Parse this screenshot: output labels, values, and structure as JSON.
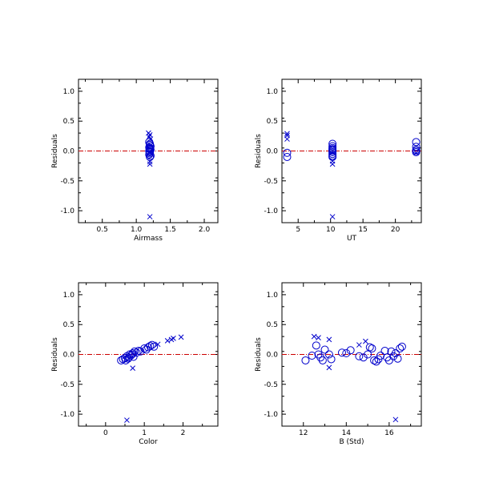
{
  "chart_data": [
    {
      "type": "scatter",
      "xlabel": "Airmass",
      "ylabel": "Residuals",
      "xlim": [
        0.15,
        2.2
      ],
      "ylim": [
        -1.2,
        1.2
      ],
      "xticks": [
        0.5,
        1.0,
        1.5,
        2.0
      ],
      "xtick_labels": [
        "0.5",
        "1.0",
        "1.5",
        "2.0"
      ],
      "yticks": [
        1.0,
        0.5,
        0.0,
        -0.5,
        -1.0
      ],
      "ytick_labels": [
        "1.0",
        "0.5",
        "0.0",
        "-0.5",
        "-1.0"
      ],
      "reference_line": 0.0,
      "series": [
        {
          "marker": "circle",
          "x": [
            1.19,
            1.2,
            1.2,
            1.21,
            1.19,
            1.2,
            1.2,
            1.21,
            1.19,
            1.2,
            1.2,
            1.2,
            1.19,
            1.21,
            1.2,
            1.2
          ],
          "y": [
            0.15,
            0.12,
            0.1,
            0.08,
            0.06,
            0.04,
            0.03,
            0.02,
            0.0,
            -0.01,
            -0.02,
            -0.04,
            -0.06,
            -0.08,
            -0.1,
            0.05
          ]
        },
        {
          "marker": "x",
          "x": [
            1.18,
            1.2,
            1.19,
            1.21,
            1.2,
            1.2,
            1.2
          ],
          "y": [
            0.3,
            0.27,
            0.24,
            0.2,
            -0.18,
            -0.22,
            -1.1
          ]
        }
      ]
    },
    {
      "type": "scatter",
      "xlabel": "UT",
      "ylabel": "Residuals",
      "xlim": [
        2.5,
        24.0
      ],
      "ylim": [
        -1.2,
        1.2
      ],
      "xticks": [
        5,
        10,
        15,
        20
      ],
      "xtick_labels": [
        "5",
        "10",
        "15",
        "20"
      ],
      "yticks": [
        1.0,
        0.5,
        0.0,
        -0.5,
        -1.0
      ],
      "ytick_labels": [
        "1.0",
        "0.5",
        "0.0",
        "-0.5",
        "-1.0"
      ],
      "reference_line": 0.0,
      "series": [
        {
          "marker": "circle",
          "x": [
            3.3,
            3.3,
            10.3,
            10.3,
            10.3,
            10.3,
            10.3,
            10.3,
            10.3,
            10.3,
            10.3,
            10.3,
            23.2,
            23.2,
            23.2,
            23.2,
            23.2
          ],
          "y": [
            -0.03,
            -0.1,
            0.12,
            0.08,
            0.05,
            0.02,
            0.0,
            -0.02,
            -0.05,
            -0.08,
            -0.1,
            0.03,
            0.15,
            0.07,
            0.02,
            -0.02,
            0.0
          ],
          "comment": ""
        },
        {
          "marker": "x",
          "x": [
            3.3,
            3.3,
            3.3,
            10.3,
            10.3,
            10.3,
            23.2
          ],
          "y": [
            0.29,
            0.26,
            0.2,
            -0.17,
            -0.22,
            -1.1,
            -0.03
          ]
        }
      ]
    },
    {
      "type": "scatter",
      "xlabel": "Color",
      "ylabel": "Residuals",
      "xlim": [
        -0.7,
        2.9
      ],
      "ylim": [
        -1.2,
        1.2
      ],
      "xticks": [
        0,
        1,
        2
      ],
      "xtick_labels": [
        "0",
        "1",
        "2"
      ],
      "yticks": [
        1.0,
        0.5,
        0.0,
        -0.5,
        -1.0
      ],
      "ytick_labels": [
        "1.0",
        "0.5",
        "0.0",
        "-0.5",
        "-1.0"
      ],
      "reference_line": 0.0,
      "series": [
        {
          "marker": "circle",
          "x": [
            0.4,
            0.45,
            0.5,
            0.52,
            0.55,
            0.6,
            0.62,
            0.65,
            0.7,
            0.72,
            0.75,
            0.8,
            0.85,
            0.9,
            1.0,
            1.05,
            1.1,
            1.15,
            1.2,
            1.25,
            0.58,
            0.68
          ],
          "y": [
            -0.1,
            -0.08,
            -0.06,
            -0.1,
            -0.03,
            -0.05,
            0.0,
            -0.02,
            0.02,
            -0.04,
            0.05,
            0.03,
            0.06,
            0.05,
            0.1,
            0.08,
            0.12,
            0.14,
            0.16,
            0.13,
            -0.07,
            0.0
          ]
        },
        {
          "marker": "x",
          "x": [
            1.6,
            1.7,
            1.75,
            1.95,
            0.55,
            0.7,
            1.35
          ],
          "y": [
            0.23,
            0.25,
            0.27,
            0.29,
            -1.1,
            -0.23,
            0.17
          ]
        }
      ]
    },
    {
      "type": "scatter",
      "xlabel": "B (Std)",
      "ylabel": "Residuals",
      "xlim": [
        11.0,
        17.5
      ],
      "ylim": [
        -1.2,
        1.2
      ],
      "xticks": [
        12,
        14,
        16
      ],
      "xtick_labels": [
        "12",
        "14",
        "16"
      ],
      "yticks": [
        1.0,
        0.5,
        0.0,
        -0.5,
        -1.0
      ],
      "ytick_labels": [
        "1.0",
        "0.5",
        "0.0",
        "-0.5",
        "-1.0"
      ],
      "reference_line": 0.0,
      "series": [
        {
          "marker": "circle",
          "x": [
            12.1,
            12.4,
            12.6,
            12.8,
            12.9,
            13.0,
            13.2,
            13.3,
            13.8,
            14.0,
            14.2,
            14.6,
            14.8,
            15.0,
            15.1,
            15.2,
            15.3,
            15.5,
            15.6,
            15.8,
            15.9,
            16.0,
            16.1,
            16.3,
            16.4,
            16.5,
            16.6,
            12.7,
            15.4,
            16.2
          ],
          "y": [
            -0.1,
            -0.02,
            0.15,
            -0.05,
            -0.1,
            0.08,
            0.0,
            -0.08,
            0.03,
            0.02,
            0.07,
            -0.03,
            -0.05,
            0.0,
            0.12,
            0.1,
            -0.1,
            -0.08,
            -0.02,
            0.06,
            -0.05,
            -0.1,
            0.05,
            0.02,
            -0.07,
            0.1,
            0.13,
            0.0,
            -0.12,
            -0.03
          ]
        },
        {
          "marker": "x",
          "x": [
            12.5,
            12.7,
            13.2,
            13.2,
            14.6,
            14.9,
            16.3
          ],
          "y": [
            0.3,
            0.28,
            0.25,
            -0.22,
            0.16,
            0.22,
            -1.09
          ]
        }
      ]
    }
  ]
}
